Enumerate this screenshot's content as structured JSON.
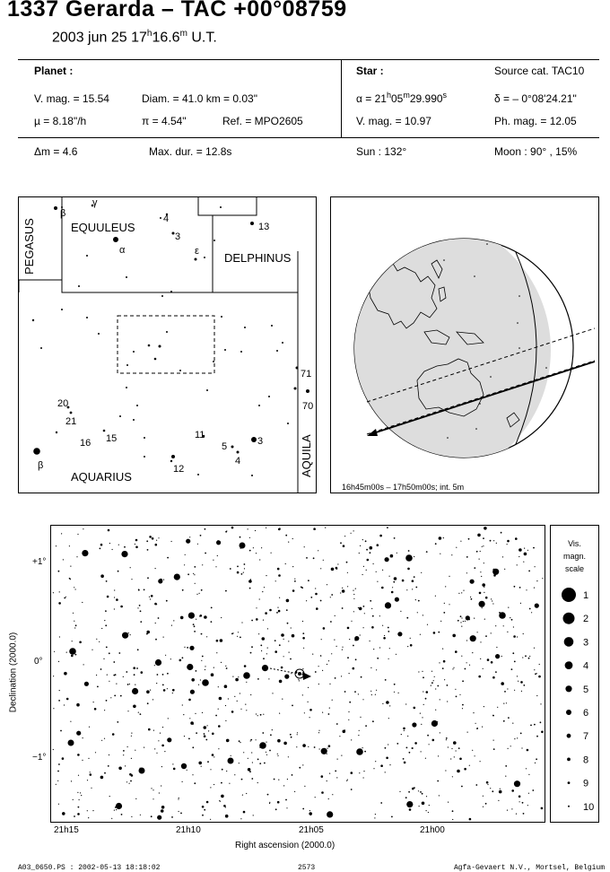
{
  "header": {
    "title": "1337 Gerarda  –  TAC +00°08759",
    "date": "2003 jun 25  17",
    "date_h": "h",
    "date_min": "16.6",
    "date_m": "m",
    "date_ut": " U.T."
  },
  "planet": {
    "heading": "Planet :",
    "vmag": "V. mag. = 15.54",
    "diam": "Diam. = 41.0 km = 0.03\"",
    "mu": "µ =  8.18\"/h",
    "pi": "π =  4.54\"",
    "ref": "Ref. = MPO2605",
    "dm": "Δm = 4.6",
    "maxdur": "Max. dur. = 12.8s"
  },
  "star": {
    "heading": "Star :",
    "source": "Source cat.  TAC10",
    "alpha_pre": "α = 21",
    "alpha_h": "h",
    "alpha_mid": "05",
    "alpha_m": "m",
    "alpha_s": "29.990",
    "alpha_sup": "s",
    "delta": "δ = – 0°08'24.21\"",
    "vmag": "V. mag. = 10.97",
    "phmag": "Ph. mag. = 12.05",
    "sun": "Sun : 132°",
    "moon": "Moon :  90° , 15%"
  },
  "finder": {
    "constellations": [
      "PEGASUS",
      "EQUULEUS",
      "DELPHINUS",
      "AQUARIUS",
      "AQUILA"
    ],
    "labels": [
      "γ",
      "β",
      "4",
      "α",
      "3",
      "ε",
      "13",
      "71",
      "70",
      "20",
      "21",
      "16",
      "15",
      "11",
      "5",
      "4",
      "3",
      "12",
      "β"
    ]
  },
  "globe": {
    "caption": "16h45m00s – 17h50m00s; int.  5m"
  },
  "starmap": {
    "yticks": [
      "+1°",
      "0°",
      "−1°"
    ],
    "xticks": [
      "21h15",
      "21h10",
      "21h05",
      "21h00"
    ],
    "ylabel": "Declination (2000.0)",
    "xlabel": "Right ascension (2000.0)"
  },
  "mag_scale": {
    "title": [
      "Vis.",
      "magn.",
      "scale"
    ],
    "levels": [
      "1",
      "2",
      "3",
      "4",
      "5",
      "6",
      "7",
      "8",
      "9",
      "10"
    ]
  },
  "footer": {
    "left": "A03_0650.PS : 2002-05-13 18:18:02",
    "center": "2573",
    "right": "Agfa-Gevaert N.V., Mortsel, Belgium"
  }
}
